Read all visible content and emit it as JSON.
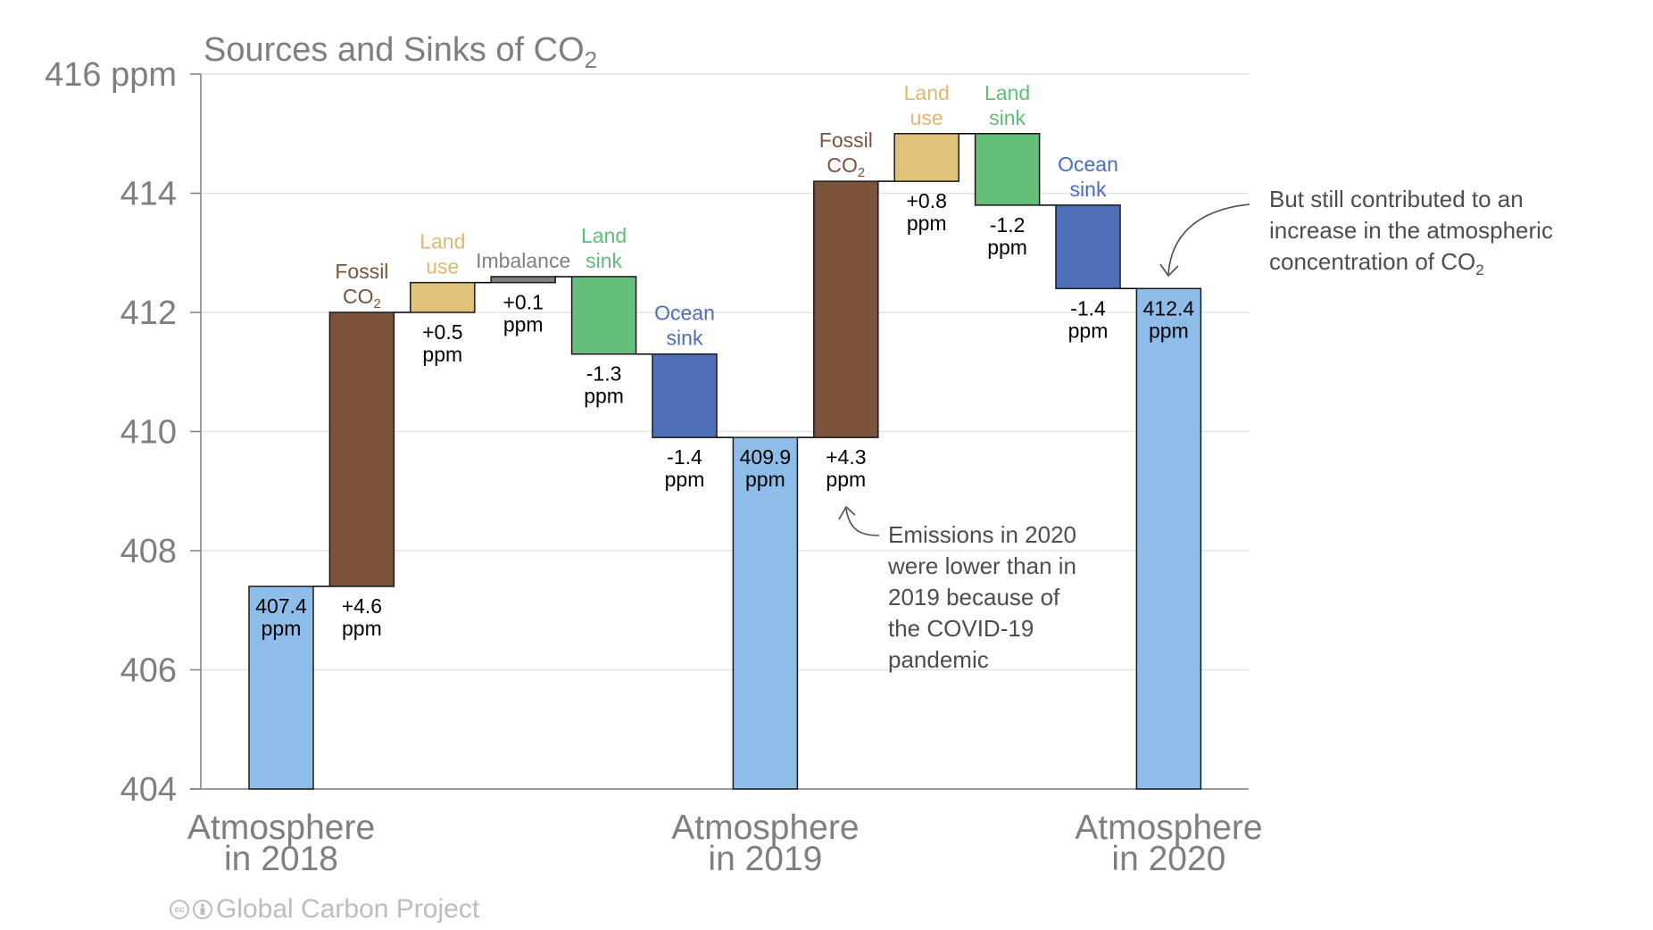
{
  "chart_data": {
    "type": "bar",
    "subtype": "waterfall",
    "title": "Sources and Sinks of CO",
    "title_subscript": "2",
    "ylabel": "",
    "ylim": [
      404,
      416
    ],
    "yticks": [
      404,
      406,
      408,
      410,
      412,
      414,
      416
    ],
    "ytick_labels": [
      "404",
      "406",
      "408",
      "410",
      "412",
      "414",
      "416 ppm"
    ],
    "grid": true,
    "bars": [
      {
        "kind": "total",
        "category": [
          "Atmosphere",
          "in 2018"
        ],
        "base": 404,
        "value": 407.4,
        "color": "#8dbde8",
        "value_label": [
          "407.4",
          "ppm"
        ],
        "label_inside": true
      },
      {
        "kind": "delta",
        "name": [
          "Fossil",
          "CO₂"
        ],
        "base": 407.4,
        "value": 4.6,
        "color": "#7b533a",
        "label_color": "#7b533a",
        "value_label": [
          "+4.6",
          "ppm"
        ]
      },
      {
        "kind": "delta",
        "name": [
          "Land",
          "use"
        ],
        "base": 412.0,
        "value": 0.5,
        "color": "#e0c27a",
        "label_color": "#dcb970",
        "value_label": [
          "+0.5",
          "ppm"
        ]
      },
      {
        "kind": "delta",
        "name": [
          "Imbalance"
        ],
        "base": 412.5,
        "value": 0.1,
        "color": "#7f7f7f",
        "label_color": "#808080",
        "value_label": [
          "+0.1",
          "ppm"
        ]
      },
      {
        "kind": "delta",
        "name": [
          "Land",
          "sink"
        ],
        "base": 412.6,
        "value": -1.3,
        "color": "#63bf7a",
        "label_color": "#5fbd78",
        "value_label": [
          "-1.3",
          "ppm"
        ]
      },
      {
        "kind": "delta",
        "name": [
          "Ocean",
          "sink"
        ],
        "base": 411.3,
        "value": -1.4,
        "color": "#4f6eb8",
        "label_color": "#4a6dbd",
        "value_label": [
          "-1.4",
          "ppm"
        ]
      },
      {
        "kind": "total",
        "category": [
          "Atmosphere",
          "in 2019"
        ],
        "base": 404,
        "value": 409.9,
        "color": "#8dbde8",
        "value_label": [
          "409.9",
          "ppm"
        ],
        "label_inside": true
      },
      {
        "kind": "delta",
        "name": [
          "Fossil",
          "CO₂"
        ],
        "base": 409.9,
        "value": 4.3,
        "color": "#7b533a",
        "label_color": "#7b533a",
        "value_label": [
          "+4.3",
          "ppm"
        ]
      },
      {
        "kind": "delta",
        "name": [
          "Land",
          "use"
        ],
        "base": 414.2,
        "value": 0.8,
        "color": "#e0c27a",
        "label_color": "#dcb970",
        "value_label": [
          "+0.8",
          "ppm"
        ]
      },
      {
        "kind": "delta",
        "name": [
          "Land",
          "sink"
        ],
        "base": 415.0,
        "value": -1.2,
        "color": "#63bf7a",
        "label_color": "#5fbd78",
        "value_label": [
          "-1.2",
          "ppm"
        ]
      },
      {
        "kind": "delta",
        "name": [
          "Ocean",
          "sink"
        ],
        "base": 413.8,
        "value": -1.4,
        "color": "#4f6eb8",
        "label_color": "#4a6dbd",
        "value_label": [
          "-1.4",
          "ppm"
        ]
      },
      {
        "kind": "total",
        "category": [
          "Atmosphere",
          "in 2020"
        ],
        "base": 404,
        "value": 412.4,
        "color": "#8dbde8",
        "value_label": [
          "412.4",
          "ppm"
        ],
        "label_inside": true
      }
    ],
    "annotations": [
      {
        "id": "covid",
        "lines": [
          "Emissions in 2020",
          "were lower than in",
          "2019 because of",
          "the COVID-19",
          "pandemic"
        ],
        "points_to": "Fossil CO₂ 2020 (+4.3 ppm)"
      },
      {
        "id": "increase",
        "lines": [
          "But still contributed to an",
          "increase in the atmospheric",
          "concentration of CO₂"
        ],
        "points_to": "Atmosphere in 2020 (412.4 ppm)"
      }
    ]
  },
  "footer": {
    "license_icons": [
      "creative-commons-icon",
      "attribution-icon"
    ],
    "cc_text": "cc",
    "text": "Global Carbon Project"
  }
}
